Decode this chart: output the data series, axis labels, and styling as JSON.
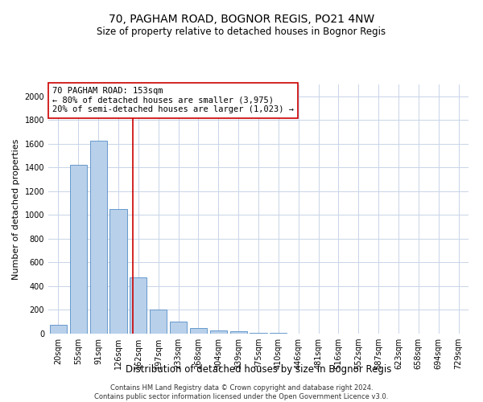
{
  "title": "70, PAGHAM ROAD, BOGNOR REGIS, PO21 4NW",
  "subtitle": "Size of property relative to detached houses in Bognor Regis",
  "xlabel": "Distribution of detached houses by size in Bognor Regis",
  "ylabel": "Number of detached properties",
  "categories": [
    "20sqm",
    "55sqm",
    "91sqm",
    "126sqm",
    "162sqm",
    "197sqm",
    "233sqm",
    "268sqm",
    "304sqm",
    "339sqm",
    "375sqm",
    "410sqm",
    "446sqm",
    "481sqm",
    "516sqm",
    "552sqm",
    "587sqm",
    "623sqm",
    "658sqm",
    "694sqm",
    "729sqm"
  ],
  "values": [
    75,
    1425,
    1625,
    1050,
    475,
    200,
    100,
    50,
    30,
    20,
    10,
    5,
    2,
    0,
    0,
    0,
    0,
    0,
    0,
    0,
    0
  ],
  "bar_color": "#b8d0ea",
  "bar_edge_color": "#6699cc",
  "vline_x": 3.72,
  "vline_color": "#cc0000",
  "annotation_text": "70 PAGHAM ROAD: 153sqm\n← 80% of detached houses are smaller (3,975)\n20% of semi-detached houses are larger (1,023) →",
  "annotation_box_color": "#ffffff",
  "annotation_box_edge_color": "#cc0000",
  "ylim": [
    0,
    2100
  ],
  "yticks": [
    0,
    200,
    400,
    600,
    800,
    1000,
    1200,
    1400,
    1600,
    1800,
    2000
  ],
  "footer": "Contains HM Land Registry data © Crown copyright and database right 2024.\nContains public sector information licensed under the Open Government Licence v3.0.",
  "background_color": "#ffffff",
  "grid_color": "#c8d4e8",
  "title_fontsize": 10,
  "subtitle_fontsize": 8.5,
  "ylabel_fontsize": 8,
  "xlabel_fontsize": 8.5,
  "tick_fontsize": 7,
  "annotation_fontsize": 7.5,
  "footer_fontsize": 6
}
